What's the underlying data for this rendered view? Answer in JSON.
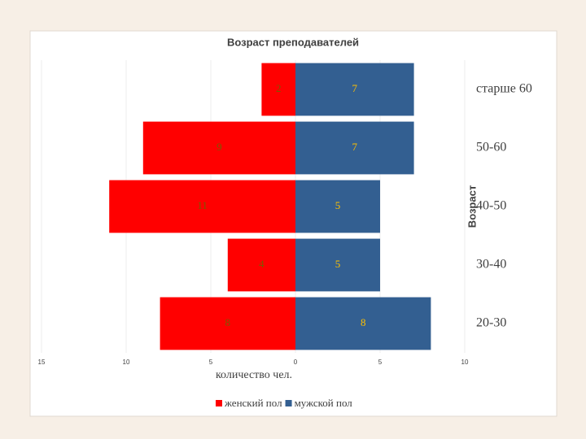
{
  "chart_data": {
    "type": "pyramid",
    "title": "Возраст преподавателей",
    "x_label": "количество чел.",
    "y_label": "Возраст",
    "categories": [
      "старше 60",
      "50-60",
      "40-50",
      "30-40",
      "20-30"
    ],
    "series": [
      {
        "name": "женский пол",
        "color": "#ff0000",
        "label_color": "#7a5a00",
        "values": [
          -2,
          -9,
          -11,
          -4,
          -8
        ],
        "value_labels": [
          "2",
          "9",
          "11",
          "4",
          "8"
        ]
      },
      {
        "name": "мужской пол",
        "color": "#335f91",
        "label_color": "#ffc000",
        "values": [
          7,
          7,
          5,
          5,
          8
        ]
      }
    ],
    "xlim": [
      -15,
      10
    ],
    "xticks": [
      {
        "value": -15,
        "label": "15"
      },
      {
        "value": -10,
        "label": "10"
      },
      {
        "value": -5,
        "label": "5"
      },
      0,
      5,
      10
    ],
    "grid": true
  }
}
